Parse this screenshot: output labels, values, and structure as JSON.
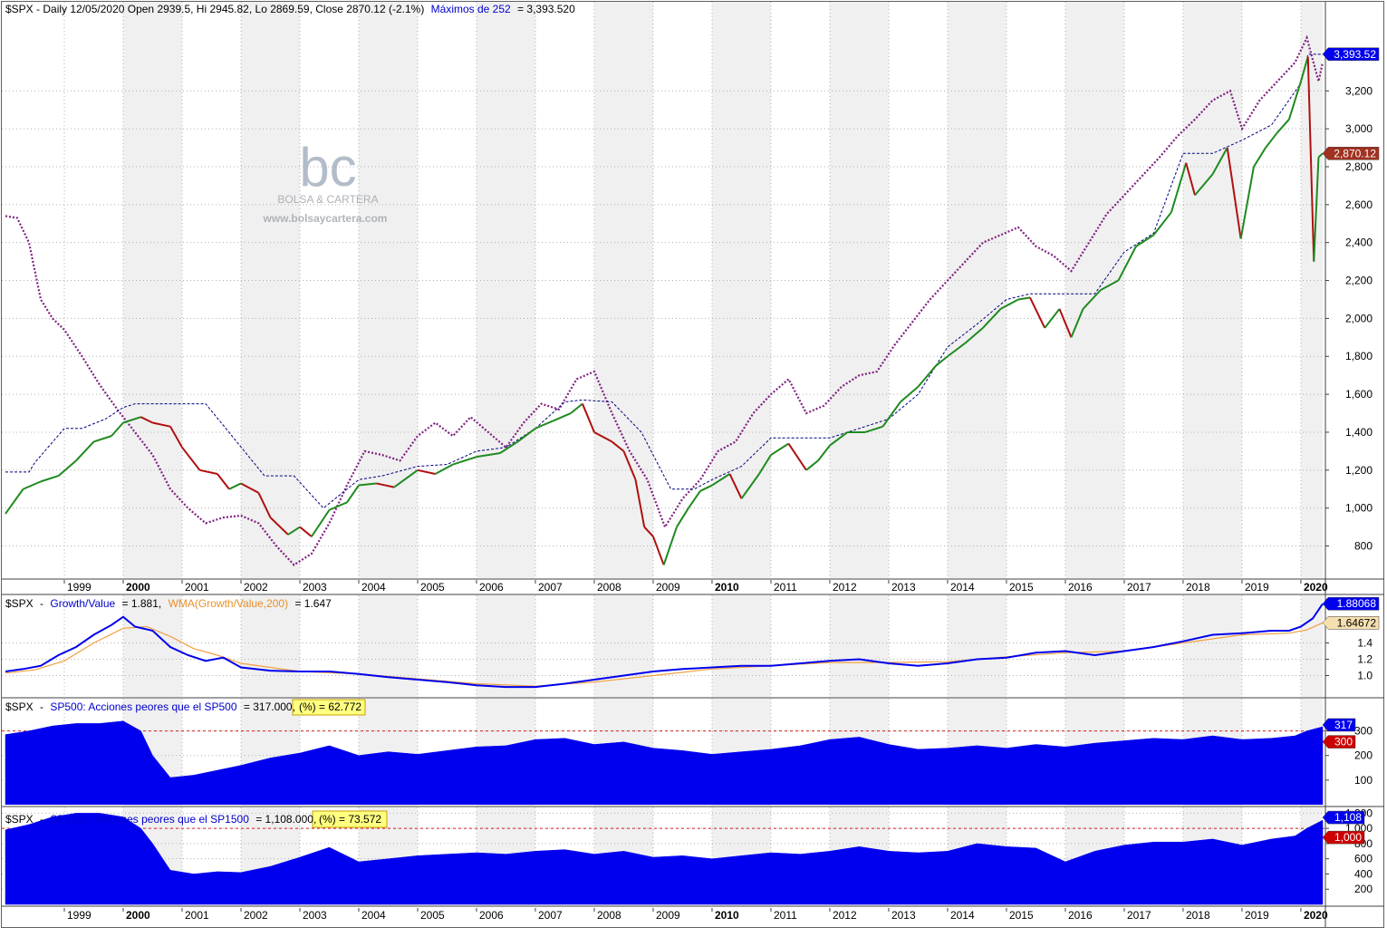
{
  "colors": {
    "price_up": "#1f8a1f",
    "price_down": "#b01010",
    "ratio_line": "#0000ee",
    "wma_line": "#f0a040",
    "area_fill": "#0000ee",
    "highs_line": "#000080",
    "sp1500_line": "#80207f",
    "threshold_line": "#d02020",
    "label_blue": "#0000ee",
    "label_red": "#cc0000",
    "label_orange": "#f6e0b0",
    "label_darkred": "#a03020",
    "highlight_bg": "#ffff80",
    "band_shade": "#f0f0f0",
    "grid": "#b0b0b0"
  },
  "watermark": {
    "logo": "bc",
    "name": "BOLSA & CARTERA",
    "url": "www.bolsaycartera.com"
  },
  "x_axis": {
    "years": [
      "1999",
      "2000",
      "2001",
      "2002",
      "2003",
      "2004",
      "2005",
      "2006",
      "2007",
      "2008",
      "2009",
      "2010",
      "2011",
      "2012",
      "2013",
      "2014",
      "2015",
      "2016",
      "2017",
      "2018",
      "2019",
      "2020"
    ],
    "bold_years": [
      "2000",
      "2010",
      "2020"
    ],
    "x_range": [
      1998.0,
      2020.37
    ]
  },
  "panels": {
    "price": {
      "header_prefix": "$SPX - Daily 12/05/2020 Open 2939.5, Hi 2945.82, Lo 2869.59, Close 2870.12 (-2.1%)",
      "header_indicator": "Máximos de 252",
      "header_value": "= 3,393.520",
      "y_ticks": [
        "800",
        "1,000",
        "1,200",
        "1,400",
        "1,600",
        "1,800",
        "2,000",
        "2,200",
        "2,400",
        "2,600",
        "2,800",
        "3,000",
        "3,200"
      ],
      "ylim": [
        640,
        3660
      ],
      "badge_high": "3,393.52",
      "badge_close": "2,870.12",
      "badge_high_value": 3393.52,
      "badge_close_value": 2870.12
    },
    "ratio": {
      "header_prefix": "$SPX",
      "header_series": "Growth/Value",
      "header_series_value": "= 1.881,",
      "header_wma": "WMA(Growth/Value,200)",
      "header_wma_value": "= 1.647",
      "y_ticks": [
        "1.0",
        "1.2",
        "1.4"
      ],
      "ylim": [
        0.75,
        1.95
      ],
      "badge_ratio": "1.88068",
      "badge_wma": "1.64672",
      "badge_ratio_value": 1.88068,
      "badge_wma_value": 1.64672
    },
    "sp500": {
      "header_prefix": "$SPX",
      "header_series": "SP500: Acciones peores que el SP500",
      "header_value": "= 317.000,",
      "header_pct": "(%) = 62.772",
      "y_ticks": [
        "100",
        "200",
        "300"
      ],
      "ylim": [
        0,
        420
      ],
      "threshold": 300,
      "badge_value": "317",
      "badge_threshold": "300"
    },
    "sp1500": {
      "header_prefix": "$SPX",
      "header_series": "SP1500: Acciones peores que el SP1500",
      "header_value": "= 1,108.000,",
      "header_pct": "(%) = 73.572",
      "y_ticks": [
        "200",
        "400",
        "600",
        "800",
        "1,000",
        "1,200"
      ],
      "ylim": [
        0,
        1240
      ],
      "threshold": 1000,
      "badge_value": "1,108",
      "badge_threshold": "1,000"
    }
  },
  "chart_data": [
    {
      "type": "line",
      "title": "$SPX - Daily 12/05/2020 Open 2939.5, Hi 2945.82, Lo 2869.59, Close 2870.12 (-2.1%)",
      "series": [
        {
          "name": "$SPX",
          "x": [
            1998.0,
            1998.3,
            1998.6,
            1998.9,
            1999.2,
            1999.5,
            1999.8,
            2000.0,
            2000.3,
            2000.5,
            2000.8,
            2001.0,
            2001.3,
            2001.6,
            2001.8,
            2002.0,
            2002.3,
            2002.5,
            2002.8,
            2003.0,
            2003.2,
            2003.5,
            2003.8,
            2004.0,
            2004.3,
            2004.6,
            2005.0,
            2005.3,
            2005.6,
            2006.0,
            2006.4,
            2006.7,
            2007.0,
            2007.3,
            2007.6,
            2007.8,
            2008.0,
            2008.3,
            2008.5,
            2008.7,
            2008.85,
            2009.0,
            2009.18,
            2009.4,
            2009.6,
            2009.8,
            2010.0,
            2010.3,
            2010.5,
            2010.8,
            2011.0,
            2011.3,
            2011.6,
            2011.8,
            2012.0,
            2012.3,
            2012.6,
            2012.9,
            2013.2,
            2013.5,
            2013.8,
            2014.0,
            2014.3,
            2014.6,
            2014.9,
            2015.2,
            2015.4,
            2015.65,
            2015.9,
            2016.1,
            2016.3,
            2016.6,
            2016.9,
            2017.2,
            2017.5,
            2017.8,
            2018.05,
            2018.2,
            2018.5,
            2018.75,
            2018.98,
            2019.2,
            2019.4,
            2019.6,
            2019.8,
            2020.0,
            2020.12,
            2020.22,
            2020.3,
            2020.37
          ],
          "values": [
            970,
            1100,
            1140,
            1170,
            1250,
            1350,
            1380,
            1450,
            1480,
            1450,
            1430,
            1320,
            1200,
            1180,
            1100,
            1130,
            1080,
            950,
            860,
            900,
            850,
            990,
            1030,
            1120,
            1130,
            1110,
            1200,
            1180,
            1230,
            1270,
            1290,
            1350,
            1420,
            1460,
            1500,
            1550,
            1400,
            1350,
            1300,
            1150,
            900,
            850,
            700,
            900,
            1000,
            1090,
            1120,
            1180,
            1050,
            1180,
            1280,
            1340,
            1200,
            1250,
            1330,
            1400,
            1400,
            1430,
            1560,
            1640,
            1750,
            1800,
            1870,
            1950,
            2050,
            2100,
            2110,
            1950,
            2050,
            1900,
            2050,
            2150,
            2200,
            2380,
            2440,
            2560,
            2820,
            2650,
            2760,
            2900,
            2420,
            2800,
            2900,
            2980,
            3050,
            3250,
            3380,
            2300,
            2850,
            2870
          ]
        },
        {
          "name": "Máximos de 252",
          "x": [
            1998.0,
            1998.4,
            1998.5,
            1999.0,
            1999.3,
            1999.7,
            2000.0,
            2000.2,
            2000.9,
            2001.4,
            2001.9,
            2002.4,
            2002.9,
            2003.4,
            2004.0,
            2004.4,
            2005.0,
            2005.5,
            2006.0,
            2006.5,
            2007.0,
            2007.5,
            2007.8,
            2008.3,
            2008.8,
            2009.3,
            2009.7,
            2010.0,
            2010.5,
            2011.0,
            2011.5,
            2012.0,
            2012.5,
            2013.0,
            2013.5,
            2014.0,
            2014.5,
            2015.0,
            2015.4,
            2016.0,
            2016.5,
            2017.0,
            2017.5,
            2018.0,
            2018.5,
            2019.0,
            2019.5,
            2020.0,
            2020.12,
            2020.37
          ],
          "values": [
            1190,
            1190,
            1240,
            1420,
            1420,
            1470,
            1530,
            1550,
            1550,
            1550,
            1360,
            1170,
            1170,
            1000,
            1150,
            1170,
            1220,
            1230,
            1300,
            1320,
            1420,
            1560,
            1570,
            1560,
            1400,
            1100,
            1100,
            1150,
            1220,
            1370,
            1370,
            1370,
            1420,
            1470,
            1600,
            1850,
            1970,
            2100,
            2130,
            2130,
            2130,
            2350,
            2450,
            2870,
            2870,
            2940,
            3020,
            3240,
            3393,
            3393
          ]
        },
        {
          "name": "$SPX (morado)",
          "x": [
            1998.0,
            1998.2,
            1998.4,
            1998.6,
            1998.8,
            1999.0,
            1999.3,
            1999.6,
            1999.9,
            2000.2,
            2000.5,
            2000.8,
            2001.1,
            2001.4,
            2001.7,
            2002.0,
            2002.3,
            2002.6,
            2002.9,
            2003.2,
            2003.5,
            2003.8,
            2004.1,
            2004.4,
            2004.7,
            2005.0,
            2005.3,
            2005.6,
            2005.9,
            2006.2,
            2006.5,
            2006.8,
            2007.1,
            2007.4,
            2007.7,
            2008.0,
            2008.3,
            2008.6,
            2008.9,
            2009.2,
            2009.5,
            2009.8,
            2010.1,
            2010.4,
            2010.7,
            2011.0,
            2011.3,
            2011.6,
            2011.9,
            2012.2,
            2012.5,
            2012.8,
            2013.1,
            2013.4,
            2013.7,
            2014.0,
            2014.3,
            2014.6,
            2014.9,
            2015.2,
            2015.5,
            2015.8,
            2016.1,
            2016.4,
            2016.7,
            2017.0,
            2017.3,
            2017.6,
            2017.9,
            2018.2,
            2018.5,
            2018.8,
            2019.0,
            2019.3,
            2019.6,
            2019.9,
            2020.1,
            2020.3,
            2020.37
          ],
          "values": [
            2540,
            2530,
            2400,
            2100,
            2000,
            1940,
            1800,
            1650,
            1520,
            1400,
            1280,
            1100,
            1000,
            920,
            950,
            960,
            920,
            800,
            700,
            760,
            920,
            1120,
            1300,
            1280,
            1250,
            1380,
            1450,
            1380,
            1480,
            1400,
            1320,
            1450,
            1550,
            1520,
            1680,
            1720,
            1500,
            1300,
            1150,
            900,
            1050,
            1150,
            1300,
            1350,
            1500,
            1600,
            1680,
            1500,
            1540,
            1640,
            1700,
            1720,
            1860,
            1980,
            2100,
            2200,
            2300,
            2400,
            2440,
            2480,
            2380,
            2330,
            2250,
            2400,
            2550,
            2650,
            2750,
            2850,
            2960,
            3050,
            3150,
            3200,
            3000,
            3150,
            3250,
            3350,
            3480,
            3250,
            3350
          ]
        }
      ],
      "ylim": [
        640,
        3660
      ],
      "xlabel": "",
      "ylabel": "",
      "legend": "none",
      "grid": true
    },
    {
      "type": "line",
      "series": [
        {
          "name": "Growth/Value",
          "x": [
            1998.0,
            1998.3,
            1998.6,
            1998.9,
            1999.2,
            1999.5,
            1999.8,
            2000.0,
            2000.2,
            2000.5,
            2000.8,
            2001.1,
            2001.4,
            2001.7,
            2002.0,
            2002.5,
            2003.0,
            2003.5,
            2004.0,
            2004.5,
            2005.0,
            2005.5,
            2006.0,
            2006.5,
            2007.0,
            2007.5,
            2008.0,
            2008.5,
            2009.0,
            2009.5,
            2010.0,
            2010.5,
            2011.0,
            2011.5,
            2012.0,
            2012.5,
            2013.0,
            2013.5,
            2014.0,
            2014.5,
            2015.0,
            2015.5,
            2016.0,
            2016.5,
            2017.0,
            2017.5,
            2018.0,
            2018.5,
            2019.0,
            2019.5,
            2019.8,
            2020.0,
            2020.2,
            2020.37
          ],
          "values": [
            1.05,
            1.08,
            1.12,
            1.25,
            1.35,
            1.5,
            1.62,
            1.72,
            1.6,
            1.55,
            1.35,
            1.25,
            1.18,
            1.22,
            1.1,
            1.06,
            1.05,
            1.05,
            1.02,
            0.98,
            0.95,
            0.92,
            0.88,
            0.86,
            0.86,
            0.9,
            0.95,
            1.0,
            1.05,
            1.08,
            1.1,
            1.12,
            1.12,
            1.15,
            1.18,
            1.2,
            1.15,
            1.12,
            1.15,
            1.2,
            1.22,
            1.28,
            1.3,
            1.25,
            1.3,
            1.35,
            1.42,
            1.5,
            1.52,
            1.55,
            1.55,
            1.6,
            1.7,
            1.88
          ]
        },
        {
          "name": "WMA(Growth/Value,200)",
          "x": [
            1998.0,
            1998.5,
            1999.0,
            1999.5,
            2000.0,
            2000.4,
            2000.8,
            2001.2,
            2001.6,
            2002.0,
            2002.5,
            2003.0,
            2004.0,
            2005.0,
            2006.0,
            2007.0,
            2008.0,
            2009.0,
            2010.0,
            2011.0,
            2012.0,
            2013.0,
            2014.0,
            2015.0,
            2016.0,
            2017.0,
            2018.0,
            2019.0,
            2019.8,
            2020.1,
            2020.37
          ],
          "values": [
            1.03,
            1.07,
            1.18,
            1.4,
            1.58,
            1.6,
            1.48,
            1.33,
            1.25,
            1.15,
            1.1,
            1.05,
            1.02,
            0.96,
            0.9,
            0.87,
            0.92,
            1.0,
            1.08,
            1.12,
            1.16,
            1.16,
            1.17,
            1.23,
            1.28,
            1.3,
            1.4,
            1.5,
            1.52,
            1.56,
            1.647
          ]
        }
      ],
      "ylim": [
        0.75,
        1.95
      ],
      "grid": true
    },
    {
      "type": "area",
      "series": [
        {
          "name": "SP500: Acciones peores que el SP500",
          "x": [
            1998.0,
            1998.4,
            1998.8,
            1999.2,
            1999.6,
            2000.0,
            2000.3,
            2000.5,
            2000.8,
            2001.2,
            2001.6,
            2002.0,
            2002.5,
            2003.0,
            2003.5,
            2004.0,
            2004.5,
            2005.0,
            2005.5,
            2006.0,
            2006.5,
            2007.0,
            2007.5,
            2008.0,
            2008.5,
            2009.0,
            2009.5,
            2010.0,
            2010.5,
            2011.0,
            2011.5,
            2012.0,
            2012.5,
            2013.0,
            2013.5,
            2014.0,
            2014.5,
            2015.0,
            2015.5,
            2016.0,
            2016.5,
            2017.0,
            2017.5,
            2018.0,
            2018.5,
            2019.0,
            2019.5,
            2019.9,
            2020.1,
            2020.37
          ],
          "values": [
            285,
            300,
            320,
            330,
            330,
            340,
            300,
            200,
            110,
            120,
            140,
            160,
            190,
            210,
            240,
            200,
            215,
            205,
            220,
            235,
            240,
            265,
            270,
            245,
            255,
            230,
            220,
            205,
            215,
            225,
            240,
            265,
            275,
            245,
            225,
            230,
            240,
            230,
            245,
            235,
            250,
            260,
            270,
            265,
            280,
            265,
            270,
            280,
            300,
            317
          ]
        }
      ],
      "ylim": [
        0,
        420
      ],
      "threshold": 300,
      "grid": true
    },
    {
      "type": "area",
      "series": [
        {
          "name": "SP1500: Acciones peores que el SP1500",
          "x": [
            1998.0,
            1998.4,
            1998.8,
            1999.2,
            1999.6,
            2000.0,
            2000.3,
            2000.5,
            2000.8,
            2001.2,
            2001.6,
            2002.0,
            2002.5,
            2003.0,
            2003.5,
            2004.0,
            2004.5,
            2005.0,
            2005.5,
            2006.0,
            2006.5,
            2007.0,
            2007.5,
            2008.0,
            2008.5,
            2009.0,
            2009.5,
            2010.0,
            2010.5,
            2011.0,
            2011.5,
            2012.0,
            2012.5,
            2013.0,
            2013.5,
            2014.0,
            2014.5,
            2015.0,
            2015.5,
            2016.0,
            2016.5,
            2017.0,
            2017.5,
            2018.0,
            2018.5,
            2019.0,
            2019.5,
            2019.9,
            2020.1,
            2020.37
          ],
          "values": [
            980,
            1050,
            1150,
            1200,
            1200,
            1150,
            1000,
            800,
            450,
            400,
            430,
            420,
            500,
            620,
            750,
            560,
            600,
            640,
            660,
            680,
            660,
            700,
            720,
            660,
            700,
            620,
            640,
            600,
            640,
            680,
            660,
            700,
            760,
            700,
            680,
            700,
            800,
            760,
            740,
            560,
            700,
            780,
            820,
            820,
            860,
            780,
            860,
            900,
            1000,
            1108
          ]
        }
      ],
      "ylim": [
        0,
        1240
      ],
      "threshold": 1000,
      "grid": true
    }
  ]
}
